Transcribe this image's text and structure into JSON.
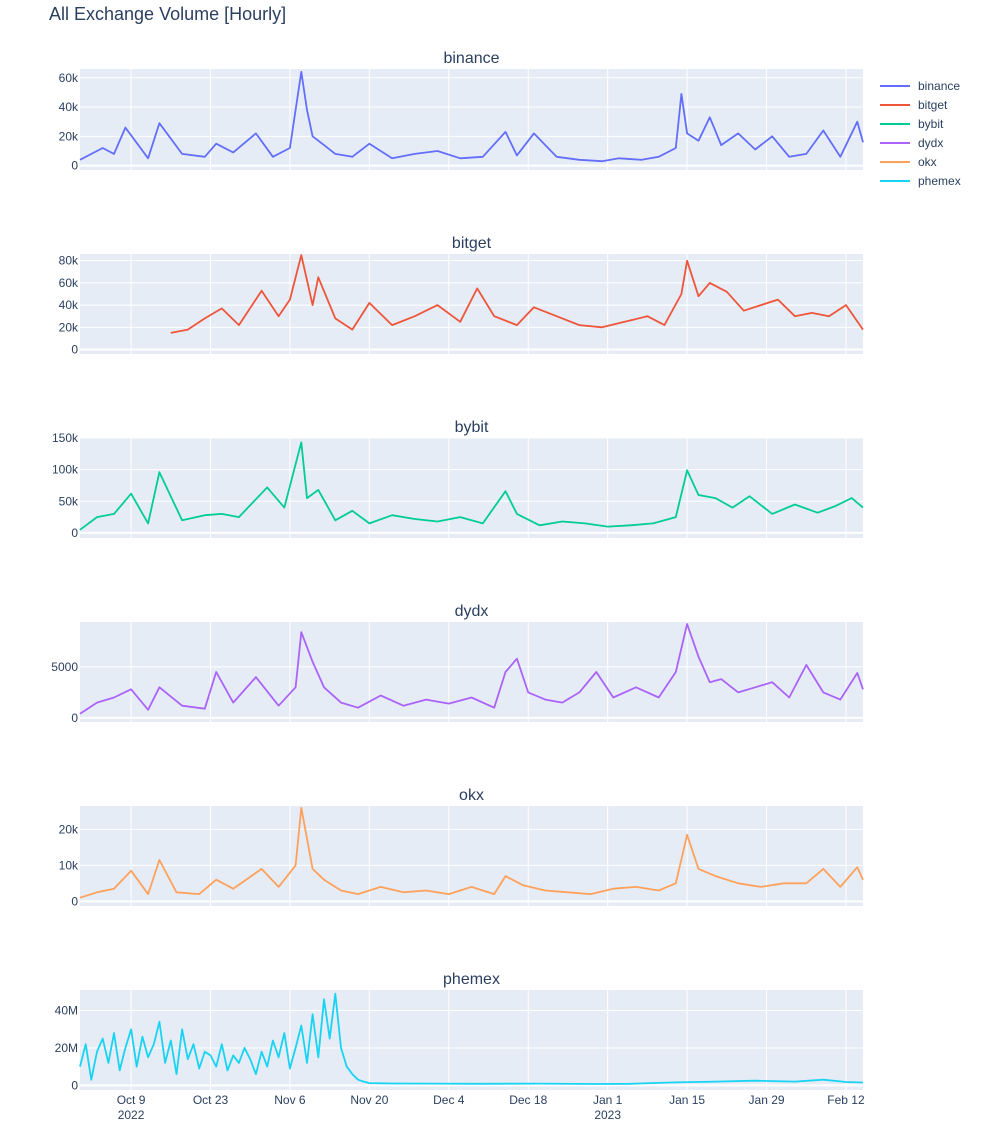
{
  "title": "All Exchange Volume [Hourly]",
  "x_ticks": [
    {
      "date": "2022-10-09",
      "label": "Oct 9",
      "sub": "2022"
    },
    {
      "date": "2022-10-23",
      "label": "Oct 23",
      "sub": ""
    },
    {
      "date": "2022-11-06",
      "label": "Nov 6",
      "sub": ""
    },
    {
      "date": "2022-11-20",
      "label": "Nov 20",
      "sub": ""
    },
    {
      "date": "2022-12-04",
      "label": "Dec 4",
      "sub": ""
    },
    {
      "date": "2022-12-18",
      "label": "Dec 18",
      "sub": ""
    },
    {
      "date": "2023-01-01",
      "label": "Jan 1",
      "sub": "2023"
    },
    {
      "date": "2023-01-15",
      "label": "Jan 15",
      "sub": ""
    },
    {
      "date": "2023-01-29",
      "label": "Jan 29",
      "sub": ""
    },
    {
      "date": "2023-02-12",
      "label": "Feb 12",
      "sub": ""
    }
  ],
  "chart_data": [
    {
      "type": "line",
      "title": "binance",
      "color": "#636efa",
      "xlim": [
        "2022-09-30",
        "2023-02-15"
      ],
      "ylim": [
        -3000,
        66000
      ],
      "yticks": [
        {
          "v": 0,
          "l": "0"
        },
        {
          "v": 20000,
          "l": "20k"
        },
        {
          "v": 40000,
          "l": "40k"
        },
        {
          "v": 60000,
          "l": "60k"
        }
      ],
      "series": [
        {
          "name": "binance",
          "x": [
            "2022-09-30",
            "2022-10-04",
            "2022-10-06",
            "2022-10-08",
            "2022-10-12",
            "2022-10-14",
            "2022-10-18",
            "2022-10-22",
            "2022-10-24",
            "2022-10-27",
            "2022-10-31",
            "2022-11-03",
            "2022-11-06",
            "2022-11-08",
            "2022-11-09",
            "2022-11-10",
            "2022-11-12",
            "2022-11-14",
            "2022-11-17",
            "2022-11-20",
            "2022-11-24",
            "2022-11-28",
            "2022-12-02",
            "2022-12-06",
            "2022-12-10",
            "2022-12-14",
            "2022-12-16",
            "2022-12-19",
            "2022-12-23",
            "2022-12-27",
            "2022-12-31",
            "2023-01-03",
            "2023-01-07",
            "2023-01-10",
            "2023-01-13",
            "2023-01-14",
            "2023-01-15",
            "2023-01-17",
            "2023-01-19",
            "2023-01-21",
            "2023-01-24",
            "2023-01-27",
            "2023-01-30",
            "2023-02-02",
            "2023-02-05",
            "2023-02-08",
            "2023-02-11",
            "2023-02-14",
            "2023-02-15"
          ],
          "y": [
            4000,
            12000,
            8000,
            26000,
            5000,
            29000,
            8000,
            6000,
            15000,
            9000,
            22000,
            6000,
            12000,
            64000,
            38000,
            20000,
            14000,
            8000,
            6000,
            15000,
            5000,
            8000,
            10000,
            5000,
            6000,
            23000,
            7000,
            22000,
            6000,
            4000,
            3000,
            5000,
            4000,
            6000,
            12000,
            49000,
            22000,
            17000,
            33000,
            14000,
            22000,
            11000,
            20000,
            6000,
            8000,
            24000,
            6000,
            30000,
            16000
          ]
        }
      ]
    },
    {
      "type": "line",
      "title": "bitget",
      "color": "#ef553b",
      "xlim": [
        "2022-09-30",
        "2023-02-15"
      ],
      "ylim": [
        -4000,
        86000
      ],
      "yticks": [
        {
          "v": 0,
          "l": "0"
        },
        {
          "v": 20000,
          "l": "20k"
        },
        {
          "v": 40000,
          "l": "40k"
        },
        {
          "v": 60000,
          "l": "60k"
        },
        {
          "v": 80000,
          "l": "80k"
        }
      ],
      "series": [
        {
          "name": "bitget",
          "x": [
            "2022-10-16",
            "2022-10-19",
            "2022-10-22",
            "2022-10-25",
            "2022-10-28",
            "2022-11-01",
            "2022-11-04",
            "2022-11-06",
            "2022-11-08",
            "2022-11-10",
            "2022-11-11",
            "2022-11-14",
            "2022-11-17",
            "2022-11-20",
            "2022-11-24",
            "2022-11-28",
            "2022-12-02",
            "2022-12-06",
            "2022-12-09",
            "2022-12-12",
            "2022-12-16",
            "2022-12-19",
            "2022-12-23",
            "2022-12-27",
            "2022-12-31",
            "2023-01-04",
            "2023-01-08",
            "2023-01-11",
            "2023-01-14",
            "2023-01-15",
            "2023-01-17",
            "2023-01-19",
            "2023-01-22",
            "2023-01-25",
            "2023-01-28",
            "2023-01-31",
            "2023-02-03",
            "2023-02-06",
            "2023-02-09",
            "2023-02-12",
            "2023-02-15"
          ],
          "y": [
            15000,
            18000,
            28000,
            37000,
            22000,
            53000,
            30000,
            45000,
            85000,
            40000,
            65000,
            28000,
            18000,
            42000,
            22000,
            30000,
            40000,
            25000,
            55000,
            30000,
            22000,
            38000,
            30000,
            22000,
            20000,
            25000,
            30000,
            22000,
            50000,
            80000,
            48000,
            60000,
            52000,
            35000,
            40000,
            45000,
            30000,
            33000,
            30000,
            40000,
            18000
          ]
        }
      ]
    },
    {
      "type": "line",
      "title": "bybit",
      "color": "#00cc96",
      "xlim": [
        "2022-09-30",
        "2023-02-15"
      ],
      "ylim": [
        -8000,
        150000
      ],
      "yticks": [
        {
          "v": 0,
          "l": "0"
        },
        {
          "v": 50000,
          "l": "50k"
        },
        {
          "v": 100000,
          "l": "100k"
        },
        {
          "v": 150000,
          "l": "150k"
        }
      ],
      "series": [
        {
          "name": "bybit",
          "x": [
            "2022-09-30",
            "2022-10-03",
            "2022-10-06",
            "2022-10-09",
            "2022-10-12",
            "2022-10-14",
            "2022-10-18",
            "2022-10-22",
            "2022-10-25",
            "2022-10-28",
            "2022-11-02",
            "2022-11-05",
            "2022-11-08",
            "2022-11-09",
            "2022-11-11",
            "2022-11-14",
            "2022-11-17",
            "2022-11-20",
            "2022-11-24",
            "2022-11-28",
            "2022-12-02",
            "2022-12-06",
            "2022-12-10",
            "2022-12-14",
            "2022-12-16",
            "2022-12-20",
            "2022-12-24",
            "2022-12-28",
            "2023-01-01",
            "2023-01-05",
            "2023-01-09",
            "2023-01-13",
            "2023-01-15",
            "2023-01-17",
            "2023-01-20",
            "2023-01-23",
            "2023-01-26",
            "2023-01-30",
            "2023-02-03",
            "2023-02-07",
            "2023-02-10",
            "2023-02-13",
            "2023-02-15"
          ],
          "y": [
            5000,
            25000,
            30000,
            62000,
            15000,
            96000,
            20000,
            28000,
            30000,
            25000,
            72000,
            40000,
            143000,
            55000,
            68000,
            20000,
            35000,
            15000,
            28000,
            22000,
            18000,
            25000,
            15000,
            66000,
            30000,
            12000,
            18000,
            15000,
            10000,
            12000,
            15000,
            25000,
            99000,
            60000,
            55000,
            40000,
            58000,
            30000,
            45000,
            32000,
            42000,
            55000,
            40000
          ]
        }
      ]
    },
    {
      "type": "line",
      "title": "dydx",
      "color": "#ab63fa",
      "xlim": [
        "2022-09-30",
        "2023-02-15"
      ],
      "ylim": [
        -400,
        9400
      ],
      "yticks": [
        {
          "v": 0,
          "l": "0"
        },
        {
          "v": 5000,
          "l": "5000"
        }
      ],
      "series": [
        {
          "name": "dydx",
          "x": [
            "2022-09-30",
            "2022-10-03",
            "2022-10-06",
            "2022-10-09",
            "2022-10-12",
            "2022-10-14",
            "2022-10-18",
            "2022-10-22",
            "2022-10-24",
            "2022-10-27",
            "2022-10-31",
            "2022-11-04",
            "2022-11-07",
            "2022-11-08",
            "2022-11-10",
            "2022-11-12",
            "2022-11-15",
            "2022-11-18",
            "2022-11-22",
            "2022-11-26",
            "2022-11-30",
            "2022-12-04",
            "2022-12-08",
            "2022-12-12",
            "2022-12-14",
            "2022-12-16",
            "2022-12-18",
            "2022-12-21",
            "2022-12-24",
            "2022-12-27",
            "2022-12-30",
            "2023-01-02",
            "2023-01-06",
            "2023-01-10",
            "2023-01-13",
            "2023-01-15",
            "2023-01-17",
            "2023-01-19",
            "2023-01-21",
            "2023-01-24",
            "2023-01-27",
            "2023-01-30",
            "2023-02-02",
            "2023-02-05",
            "2023-02-08",
            "2023-02-11",
            "2023-02-14",
            "2023-02-15"
          ],
          "y": [
            400,
            1500,
            2000,
            2800,
            800,
            3000,
            1200,
            900,
            4500,
            1500,
            4000,
            1200,
            3000,
            8400,
            5500,
            3000,
            1500,
            1000,
            2200,
            1200,
            1800,
            1400,
            2000,
            1000,
            4500,
            5800,
            2500,
            1800,
            1500,
            2500,
            4500,
            2000,
            3000,
            2000,
            4500,
            9200,
            6000,
            3500,
            3800,
            2500,
            3000,
            3500,
            2000,
            5200,
            2500,
            1800,
            4400,
            2800
          ]
        }
      ]
    },
    {
      "type": "line",
      "title": "okx",
      "color": "#ffa15a",
      "xlim": [
        "2022-09-30",
        "2023-02-15"
      ],
      "ylim": [
        -1300,
        26500
      ],
      "yticks": [
        {
          "v": 0,
          "l": "0"
        },
        {
          "v": 10000,
          "l": "10k"
        },
        {
          "v": 20000,
          "l": "20k"
        }
      ],
      "series": [
        {
          "name": "okx",
          "x": [
            "2022-09-30",
            "2022-10-03",
            "2022-10-06",
            "2022-10-09",
            "2022-10-12",
            "2022-10-14",
            "2022-10-17",
            "2022-10-21",
            "2022-10-24",
            "2022-10-27",
            "2022-11-01",
            "2022-11-04",
            "2022-11-07",
            "2022-11-08",
            "2022-11-10",
            "2022-11-12",
            "2022-11-15",
            "2022-11-18",
            "2022-11-22",
            "2022-11-26",
            "2022-11-30",
            "2022-12-04",
            "2022-12-08",
            "2022-12-12",
            "2022-12-14",
            "2022-12-17",
            "2022-12-21",
            "2022-12-25",
            "2022-12-29",
            "2023-01-02",
            "2023-01-06",
            "2023-01-10",
            "2023-01-13",
            "2023-01-15",
            "2023-01-17",
            "2023-01-20",
            "2023-01-24",
            "2023-01-28",
            "2023-02-01",
            "2023-02-05",
            "2023-02-08",
            "2023-02-11",
            "2023-02-14",
            "2023-02-15"
          ],
          "y": [
            1000,
            2500,
            3500,
            8500,
            2000,
            11500,
            2500,
            2000,
            6000,
            3500,
            9000,
            4000,
            10000,
            26000,
            9000,
            6000,
            3000,
            2000,
            4000,
            2500,
            3000,
            2000,
            4000,
            2000,
            7000,
            4500,
            3000,
            2500,
            2000,
            3500,
            4000,
            3000,
            5000,
            18500,
            9000,
            7000,
            5000,
            4000,
            5000,
            5000,
            9000,
            4000,
            9500,
            6000
          ]
        }
      ]
    },
    {
      "type": "line",
      "title": "phemex",
      "color": "#19d3f3",
      "xlim": [
        "2022-09-30",
        "2023-02-15"
      ],
      "ylim": [
        -2500000,
        51000000
      ],
      "yticks": [
        {
          "v": 0,
          "l": "0"
        },
        {
          "v": 20000000,
          "l": "20M"
        },
        {
          "v": 40000000,
          "l": "40M"
        }
      ],
      "series": [
        {
          "name": "phemex",
          "x": [
            "2022-09-30",
            "2022-10-01",
            "2022-10-02",
            "2022-10-03",
            "2022-10-04",
            "2022-10-05",
            "2022-10-06",
            "2022-10-07",
            "2022-10-08",
            "2022-10-09",
            "2022-10-10",
            "2022-10-11",
            "2022-10-12",
            "2022-10-13",
            "2022-10-14",
            "2022-10-15",
            "2022-10-16",
            "2022-10-17",
            "2022-10-18",
            "2022-10-19",
            "2022-10-20",
            "2022-10-21",
            "2022-10-22",
            "2022-10-23",
            "2022-10-24",
            "2022-10-25",
            "2022-10-26",
            "2022-10-27",
            "2022-10-28",
            "2022-10-29",
            "2022-10-30",
            "2022-10-31",
            "2022-11-01",
            "2022-11-02",
            "2022-11-03",
            "2022-11-04",
            "2022-11-05",
            "2022-11-06",
            "2022-11-07",
            "2022-11-08",
            "2022-11-09",
            "2022-11-10",
            "2022-11-11",
            "2022-11-12",
            "2022-11-13",
            "2022-11-14",
            "2022-11-15",
            "2022-11-16",
            "2022-11-17",
            "2022-11-18",
            "2022-11-19",
            "2022-11-20",
            "2022-11-24",
            "2022-12-01",
            "2022-12-10",
            "2022-12-20",
            "2022-12-30",
            "2023-01-05",
            "2023-01-12",
            "2023-01-20",
            "2023-01-27",
            "2023-02-03",
            "2023-02-08",
            "2023-02-12",
            "2023-02-15"
          ],
          "y": [
            10000000,
            22000000,
            3000000,
            18000000,
            25000000,
            12000000,
            28000000,
            8000000,
            20000000,
            30000000,
            10000000,
            26000000,
            15000000,
            22000000,
            34000000,
            12000000,
            24000000,
            6000000,
            30000000,
            14000000,
            22000000,
            9000000,
            18000000,
            16000000,
            10000000,
            22000000,
            8000000,
            16000000,
            12000000,
            20000000,
            14000000,
            6000000,
            18000000,
            10000000,
            24000000,
            15000000,
            28000000,
            9000000,
            20000000,
            32000000,
            12000000,
            38000000,
            15000000,
            46000000,
            25000000,
            49000000,
            20000000,
            10000000,
            6000000,
            3000000,
            2000000,
            1200000,
            1000000,
            900000,
            800000,
            900000,
            700000,
            800000,
            1500000,
            2000000,
            2500000,
            2000000,
            3000000,
            1800000,
            1500000
          ]
        }
      ]
    }
  ]
}
